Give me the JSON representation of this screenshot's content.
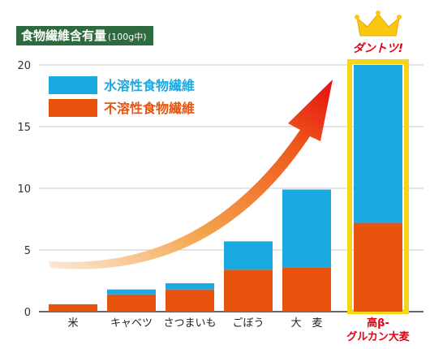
{
  "title": "食物繊維含有量",
  "title_unit": "(100g中)",
  "badge_text": "ダントツ!",
  "colors": {
    "soluble": "#1aa9e1",
    "insoluble": "#e8540e",
    "highlight_border": "#f7d417",
    "highlight_label": "#e60012",
    "arrow": "#e8380e"
  },
  "chart_data": {
    "type": "bar",
    "stacked": true,
    "title": "食物繊維含有量",
    "unit": "(100g中)",
    "categories": [
      "米",
      "キャベツ",
      "さつまいも",
      "ごぼう",
      "大　麦",
      "高β-グルカン大麦"
    ],
    "category_label_lines": [
      [
        "米"
      ],
      [
        "キャベツ"
      ],
      [
        "さつまいも"
      ],
      [
        "ごぼう"
      ],
      [
        "大　麦"
      ],
      [
        "高β-",
        "グルカン大麦"
      ]
    ],
    "series": [
      {
        "name": "不溶性食物繊維",
        "values": [
          0.6,
          1.4,
          1.8,
          3.4,
          3.6,
          7.2
        ]
      },
      {
        "name": "水溶性食物繊維",
        "values": [
          0.0,
          0.4,
          0.5,
          2.3,
          6.3,
          12.8
        ]
      }
    ],
    "legend_order": [
      "水溶性食物繊維",
      "不溶性食物繊維"
    ],
    "yticks": [
      0,
      5,
      10,
      15,
      20
    ],
    "ylim": [
      0,
      20
    ],
    "grid": true,
    "highlight_index": 5,
    "legend_position": "top-left"
  }
}
